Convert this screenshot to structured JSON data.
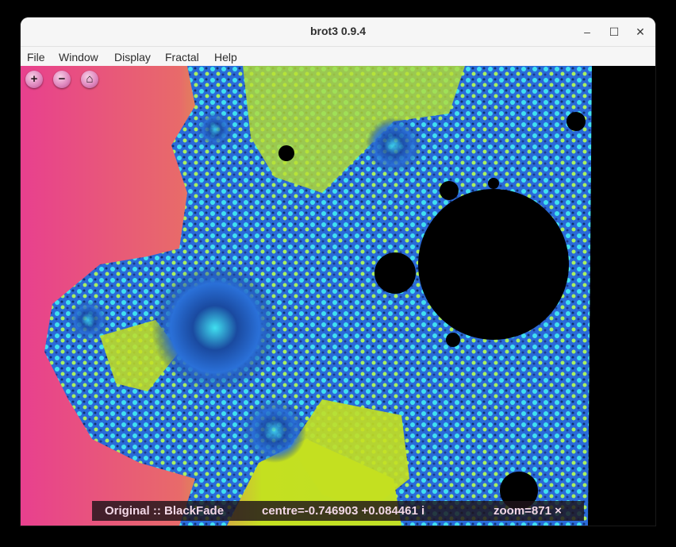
{
  "window": {
    "title": "brot3 0.9.4"
  },
  "window_controls": {
    "minimize": "–",
    "maximize": "☐",
    "close": "✕"
  },
  "menu": {
    "items": [
      {
        "label": "File"
      },
      {
        "label": "Window"
      },
      {
        "label": "Display"
      },
      {
        "label": "Fractal"
      },
      {
        "label": "Help"
      }
    ]
  },
  "toolbar": {
    "zoom_in": "+",
    "zoom_out": "−",
    "home": "⌂"
  },
  "status": {
    "algorithm": "Original :: BlackFade",
    "centre": "centre=-0.746903 +0.084461 i",
    "zoom": "zoom=871 ×"
  },
  "colors": {
    "background_pink": "#e8408e",
    "background_yellow": "#c4e020",
    "fractal_green": "#a8f060",
    "fractal_cyan": "#40e0f0",
    "fractal_blue": "#2060d0",
    "set_black": "#000000"
  }
}
